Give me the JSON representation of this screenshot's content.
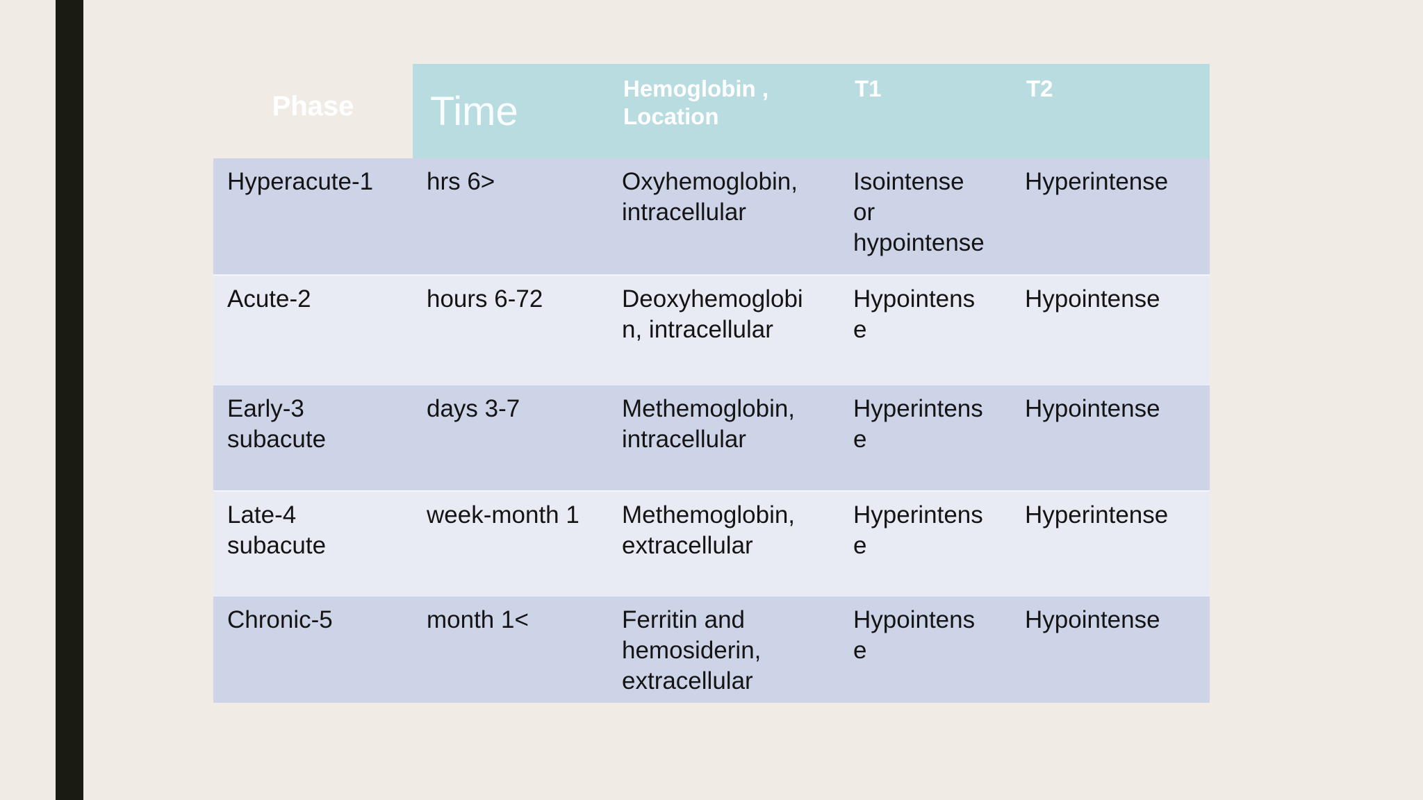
{
  "slide": {
    "background_color": "#f0ece5",
    "accent_bar_color": "#1a1c11"
  },
  "table": {
    "colors": {
      "header_teal": "#b8dce0",
      "row_lavender": "#cdd4e7",
      "row_light": "#e9ebf4",
      "body_text": "#141414",
      "header_text": "#ffffff"
    },
    "header": {
      "phase": "Phase",
      "time": "Time",
      "hemoglobin_location": "Hemoglobin ,\nLocation",
      "t1": "T1",
      "t2": "T2"
    },
    "rows": [
      {
        "phase": "Hyperacute-1",
        "time": "hrs 6>",
        "hemoglobin_location": "Oxyhemoglobin,\nintracellular",
        "t1": "Isointense\nor\nhypointense",
        "t2": "Hyperintense"
      },
      {
        "phase": "Acute-2",
        "time": "hours 6-72",
        "hemoglobin_location": "Deoxyhemoglobi\nn, intracellular",
        "t1": "Hypointens\ne",
        "t2": "Hypointense"
      },
      {
        "phase": "Early-3\nsubacute",
        "time": "days 3-7",
        "hemoglobin_location": "Methemoglobin,\nintracellular",
        "t1": "Hyperintens\ne",
        "t2": "Hypointense"
      },
      {
        "phase": "Late-4\nsubacute",
        "time": "week-month 1",
        "hemoglobin_location": "Methemoglobin,\nextracellular",
        "t1": "Hyperintens\ne",
        "t2": "Hyperintense"
      },
      {
        "phase": "Chronic-5",
        "time": "month 1<",
        "hemoglobin_location": "Ferritin and\nhemosiderin,\nextracellular",
        "t1": "Hypointens\ne",
        "t2": "Hypointense"
      }
    ]
  }
}
